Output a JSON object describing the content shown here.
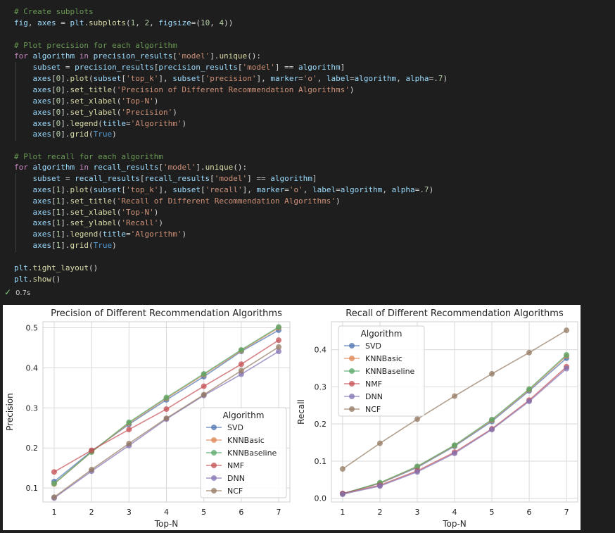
{
  "code": {
    "lines": [
      [
        [
          "# Create subplots",
          "c-cm"
        ]
      ],
      [
        [
          "fig",
          "c-var"
        ],
        [
          ", ",
          "c-op"
        ],
        [
          "axes",
          "c-var"
        ],
        [
          " = ",
          "c-op"
        ],
        [
          "plt",
          "c-var"
        ],
        [
          ".",
          "c-op"
        ],
        [
          "subplots",
          "c-fn"
        ],
        [
          "(",
          "c-op"
        ],
        [
          "1",
          "c-num"
        ],
        [
          ", ",
          "c-op"
        ],
        [
          "2",
          "c-num"
        ],
        [
          ", ",
          "c-op"
        ],
        [
          "figsize",
          "c-var"
        ],
        [
          "=(",
          "c-op"
        ],
        [
          "10",
          "c-num"
        ],
        [
          ", ",
          "c-op"
        ],
        [
          "4",
          "c-num"
        ],
        [
          "))",
          "c-op"
        ]
      ],
      [
        [
          "",
          "c-op"
        ]
      ],
      [
        [
          "# Plot precision for each algorithm",
          "c-cm"
        ]
      ],
      [
        [
          "for ",
          "c-kw"
        ],
        [
          "algorithm ",
          "c-var"
        ],
        [
          "in ",
          "c-kw"
        ],
        [
          "precision_results",
          "c-var"
        ],
        [
          "[",
          "c-op"
        ],
        [
          "'model'",
          "c-str"
        ],
        [
          "].",
          "c-op"
        ],
        [
          "unique",
          "c-fn"
        ],
        [
          "():",
          "c-op"
        ]
      ],
      [
        [
          "    subset",
          "c-var"
        ],
        [
          " = ",
          "c-op"
        ],
        [
          "precision_results",
          "c-var"
        ],
        [
          "[",
          "c-op"
        ],
        [
          "precision_results",
          "c-var"
        ],
        [
          "[",
          "c-op"
        ],
        [
          "'model'",
          "c-str"
        ],
        [
          "] == ",
          "c-op"
        ],
        [
          "algorithm",
          "c-var"
        ],
        [
          "]",
          "c-op"
        ]
      ],
      [
        [
          "    axes",
          "c-var"
        ],
        [
          "[",
          "c-op"
        ],
        [
          "0",
          "c-num"
        ],
        [
          "].",
          "c-op"
        ],
        [
          "plot",
          "c-fn"
        ],
        [
          "(",
          "c-op"
        ],
        [
          "subset",
          "c-var"
        ],
        [
          "[",
          "c-op"
        ],
        [
          "'top_k'",
          "c-str"
        ],
        [
          "], ",
          "c-op"
        ],
        [
          "subset",
          "c-var"
        ],
        [
          "[",
          "c-op"
        ],
        [
          "'precision'",
          "c-str"
        ],
        [
          "], ",
          "c-op"
        ],
        [
          "marker",
          "c-var"
        ],
        [
          "=",
          "c-op"
        ],
        [
          "'o'",
          "c-str"
        ],
        [
          ", ",
          "c-op"
        ],
        [
          "label",
          "c-var"
        ],
        [
          "=",
          "c-op"
        ],
        [
          "algorithm",
          "c-var"
        ],
        [
          ", ",
          "c-op"
        ],
        [
          "alpha",
          "c-var"
        ],
        [
          "=",
          "c-op"
        ],
        [
          ".7",
          "c-num"
        ],
        [
          ")",
          "c-op"
        ]
      ],
      [
        [
          "    axes",
          "c-var"
        ],
        [
          "[",
          "c-op"
        ],
        [
          "0",
          "c-num"
        ],
        [
          "].",
          "c-op"
        ],
        [
          "set_title",
          "c-fn"
        ],
        [
          "(",
          "c-op"
        ],
        [
          "'Precision of Different Recommendation Algorithms'",
          "c-str"
        ],
        [
          ")",
          "c-op"
        ]
      ],
      [
        [
          "    axes",
          "c-var"
        ],
        [
          "[",
          "c-op"
        ],
        [
          "0",
          "c-num"
        ],
        [
          "].",
          "c-op"
        ],
        [
          "set_xlabel",
          "c-fn"
        ],
        [
          "(",
          "c-op"
        ],
        [
          "'Top-N'",
          "c-str"
        ],
        [
          ")",
          "c-op"
        ]
      ],
      [
        [
          "    axes",
          "c-var"
        ],
        [
          "[",
          "c-op"
        ],
        [
          "0",
          "c-num"
        ],
        [
          "].",
          "c-op"
        ],
        [
          "set_ylabel",
          "c-fn"
        ],
        [
          "(",
          "c-op"
        ],
        [
          "'Precision'",
          "c-str"
        ],
        [
          ")",
          "c-op"
        ]
      ],
      [
        [
          "    axes",
          "c-var"
        ],
        [
          "[",
          "c-op"
        ],
        [
          "0",
          "c-num"
        ],
        [
          "].",
          "c-op"
        ],
        [
          "legend",
          "c-fn"
        ],
        [
          "(",
          "c-op"
        ],
        [
          "title",
          "c-var"
        ],
        [
          "=",
          "c-op"
        ],
        [
          "'Algorithm'",
          "c-str"
        ],
        [
          ")",
          "c-op"
        ]
      ],
      [
        [
          "    axes",
          "c-var"
        ],
        [
          "[",
          "c-op"
        ],
        [
          "0",
          "c-num"
        ],
        [
          "].",
          "c-op"
        ],
        [
          "grid",
          "c-fn"
        ],
        [
          "(",
          "c-op"
        ],
        [
          "True",
          "c-bool"
        ],
        [
          ")",
          "c-op"
        ]
      ],
      [
        [
          "",
          "c-op"
        ]
      ],
      [
        [
          "# Plot recall for each algorithm",
          "c-cm"
        ]
      ],
      [
        [
          "for ",
          "c-kw"
        ],
        [
          "algorithm ",
          "c-var"
        ],
        [
          "in ",
          "c-kw"
        ],
        [
          "recall_results",
          "c-var"
        ],
        [
          "[",
          "c-op"
        ],
        [
          "'model'",
          "c-str"
        ],
        [
          "].",
          "c-op"
        ],
        [
          "unique",
          "c-fn"
        ],
        [
          "():",
          "c-op"
        ]
      ],
      [
        [
          "    subset",
          "c-var"
        ],
        [
          " = ",
          "c-op"
        ],
        [
          "recall_results",
          "c-var"
        ],
        [
          "[",
          "c-op"
        ],
        [
          "recall_results",
          "c-var"
        ],
        [
          "[",
          "c-op"
        ],
        [
          "'model'",
          "c-str"
        ],
        [
          "] == ",
          "c-op"
        ],
        [
          "algorithm",
          "c-var"
        ],
        [
          "]",
          "c-op"
        ]
      ],
      [
        [
          "    axes",
          "c-var"
        ],
        [
          "[",
          "c-op"
        ],
        [
          "1",
          "c-num"
        ],
        [
          "].",
          "c-op"
        ],
        [
          "plot",
          "c-fn"
        ],
        [
          "(",
          "c-op"
        ],
        [
          "subset",
          "c-var"
        ],
        [
          "[",
          "c-op"
        ],
        [
          "'top_k'",
          "c-str"
        ],
        [
          "], ",
          "c-op"
        ],
        [
          "subset",
          "c-var"
        ],
        [
          "[",
          "c-op"
        ],
        [
          "'recall'",
          "c-str"
        ],
        [
          "], ",
          "c-op"
        ],
        [
          "marker",
          "c-var"
        ],
        [
          "=",
          "c-op"
        ],
        [
          "'o'",
          "c-str"
        ],
        [
          ", ",
          "c-op"
        ],
        [
          "label",
          "c-var"
        ],
        [
          "=",
          "c-op"
        ],
        [
          "algorithm",
          "c-var"
        ],
        [
          ", ",
          "c-op"
        ],
        [
          "alpha",
          "c-var"
        ],
        [
          "=",
          "c-op"
        ],
        [
          ".7",
          "c-num"
        ],
        [
          ")",
          "c-op"
        ]
      ],
      [
        [
          "    axes",
          "c-var"
        ],
        [
          "[",
          "c-op"
        ],
        [
          "1",
          "c-num"
        ],
        [
          "].",
          "c-op"
        ],
        [
          "set_title",
          "c-fn"
        ],
        [
          "(",
          "c-op"
        ],
        [
          "'Recall of Different Recommendation Algorithms'",
          "c-str"
        ],
        [
          ")",
          "c-op"
        ]
      ],
      [
        [
          "    axes",
          "c-var"
        ],
        [
          "[",
          "c-op"
        ],
        [
          "1",
          "c-num"
        ],
        [
          "].",
          "c-op"
        ],
        [
          "set_xlabel",
          "c-fn"
        ],
        [
          "(",
          "c-op"
        ],
        [
          "'Top-N'",
          "c-str"
        ],
        [
          ")",
          "c-op"
        ]
      ],
      [
        [
          "    axes",
          "c-var"
        ],
        [
          "[",
          "c-op"
        ],
        [
          "1",
          "c-num"
        ],
        [
          "].",
          "c-op"
        ],
        [
          "set_ylabel",
          "c-fn"
        ],
        [
          "(",
          "c-op"
        ],
        [
          "'Recall'",
          "c-str"
        ],
        [
          ")",
          "c-op"
        ]
      ],
      [
        [
          "    axes",
          "c-var"
        ],
        [
          "[",
          "c-op"
        ],
        [
          "1",
          "c-num"
        ],
        [
          "].",
          "c-op"
        ],
        [
          "legend",
          "c-fn"
        ],
        [
          "(",
          "c-op"
        ],
        [
          "title",
          "c-var"
        ],
        [
          "=",
          "c-op"
        ],
        [
          "'Algorithm'",
          "c-str"
        ],
        [
          ")",
          "c-op"
        ]
      ],
      [
        [
          "    axes",
          "c-var"
        ],
        [
          "[",
          "c-op"
        ],
        [
          "1",
          "c-num"
        ],
        [
          "].",
          "c-op"
        ],
        [
          "grid",
          "c-fn"
        ],
        [
          "(",
          "c-op"
        ],
        [
          "True",
          "c-bool"
        ],
        [
          ")",
          "c-op"
        ]
      ],
      [
        [
          "",
          "c-op"
        ]
      ],
      [
        [
          "plt",
          "c-var"
        ],
        [
          ".",
          "c-op"
        ],
        [
          "tight_layout",
          "c-fn"
        ],
        [
          "()",
          "c-op"
        ]
      ],
      [
        [
          "plt",
          "c-var"
        ],
        [
          ".",
          "c-op"
        ],
        [
          "show",
          "c-fn"
        ],
        [
          "()",
          "c-op"
        ]
      ]
    ]
  },
  "status": {
    "icon": "check-icon",
    "time": "0.7s"
  },
  "colors": {
    "SVD": "#4c72b0",
    "KNNBasic": "#dd8452",
    "KNNBaseline": "#55a868",
    "NMF": "#c44e52",
    "DNN": "#8172b3",
    "NCF": "#937860"
  },
  "chart_data": [
    {
      "type": "line",
      "title": "Precision of Different Recommendation Algorithms",
      "xlabel": "Top-N",
      "ylabel": "Precision",
      "x": [
        1,
        2,
        3,
        4,
        5,
        6,
        7
      ],
      "xlim": [
        0.7,
        7.3
      ],
      "ylim": [
        0.065,
        0.515
      ],
      "yticks": [
        0.1,
        0.2,
        0.3,
        0.4,
        0.5
      ],
      "grid": true,
      "legend": {
        "title": "Algorithm",
        "placement": "lower-right"
      },
      "series": [
        {
          "name": "SVD",
          "values": [
            0.116,
            0.192,
            0.259,
            0.32,
            0.378,
            0.441,
            0.494
          ]
        },
        {
          "name": "KNNBasic",
          "values": [
            0.11,
            0.19,
            0.262,
            0.324,
            0.383,
            0.443,
            0.5
          ]
        },
        {
          "name": "KNNBaseline",
          "values": [
            0.111,
            0.19,
            0.264,
            0.326,
            0.385,
            0.445,
            0.502
          ]
        },
        {
          "name": "NMF",
          "values": [
            0.14,
            0.194,
            0.246,
            0.297,
            0.354,
            0.409,
            0.469
          ]
        },
        {
          "name": "DNN",
          "values": [
            0.075,
            0.142,
            0.206,
            0.272,
            0.331,
            0.384,
            0.441
          ]
        },
        {
          "name": "NCF",
          "values": [
            0.077,
            0.146,
            0.211,
            0.274,
            0.333,
            0.393,
            0.452
          ]
        }
      ]
    },
    {
      "type": "line",
      "title": "Recall of Different Recommendation Algorithms",
      "xlabel": "Top-N",
      "ylabel": "Recall",
      "x": [
        1,
        2,
        3,
        4,
        5,
        6,
        7
      ],
      "xlim": [
        0.7,
        7.3
      ],
      "ylim": [
        -0.01,
        0.475
      ],
      "yticks": [
        0.0,
        0.1,
        0.2,
        0.3,
        0.4
      ],
      "grid": true,
      "legend": {
        "title": "Algorithm",
        "placement": "upper-left"
      },
      "series": [
        {
          "name": "SVD",
          "values": [
            0.013,
            0.04,
            0.083,
            0.14,
            0.207,
            0.289,
            0.377
          ]
        },
        {
          "name": "KNNBasic",
          "values": [
            0.012,
            0.041,
            0.085,
            0.142,
            0.21,
            0.292,
            0.383
          ]
        },
        {
          "name": "KNNBaseline",
          "values": [
            0.012,
            0.042,
            0.086,
            0.143,
            0.212,
            0.294,
            0.386
          ]
        },
        {
          "name": "NMF",
          "values": [
            0.013,
            0.035,
            0.074,
            0.124,
            0.187,
            0.264,
            0.354
          ]
        },
        {
          "name": "DNN",
          "values": [
            0.011,
            0.033,
            0.071,
            0.121,
            0.185,
            0.261,
            0.349
          ]
        },
        {
          "name": "NCF",
          "values": [
            0.079,
            0.148,
            0.213,
            0.275,
            0.335,
            0.392,
            0.452
          ]
        }
      ]
    }
  ]
}
